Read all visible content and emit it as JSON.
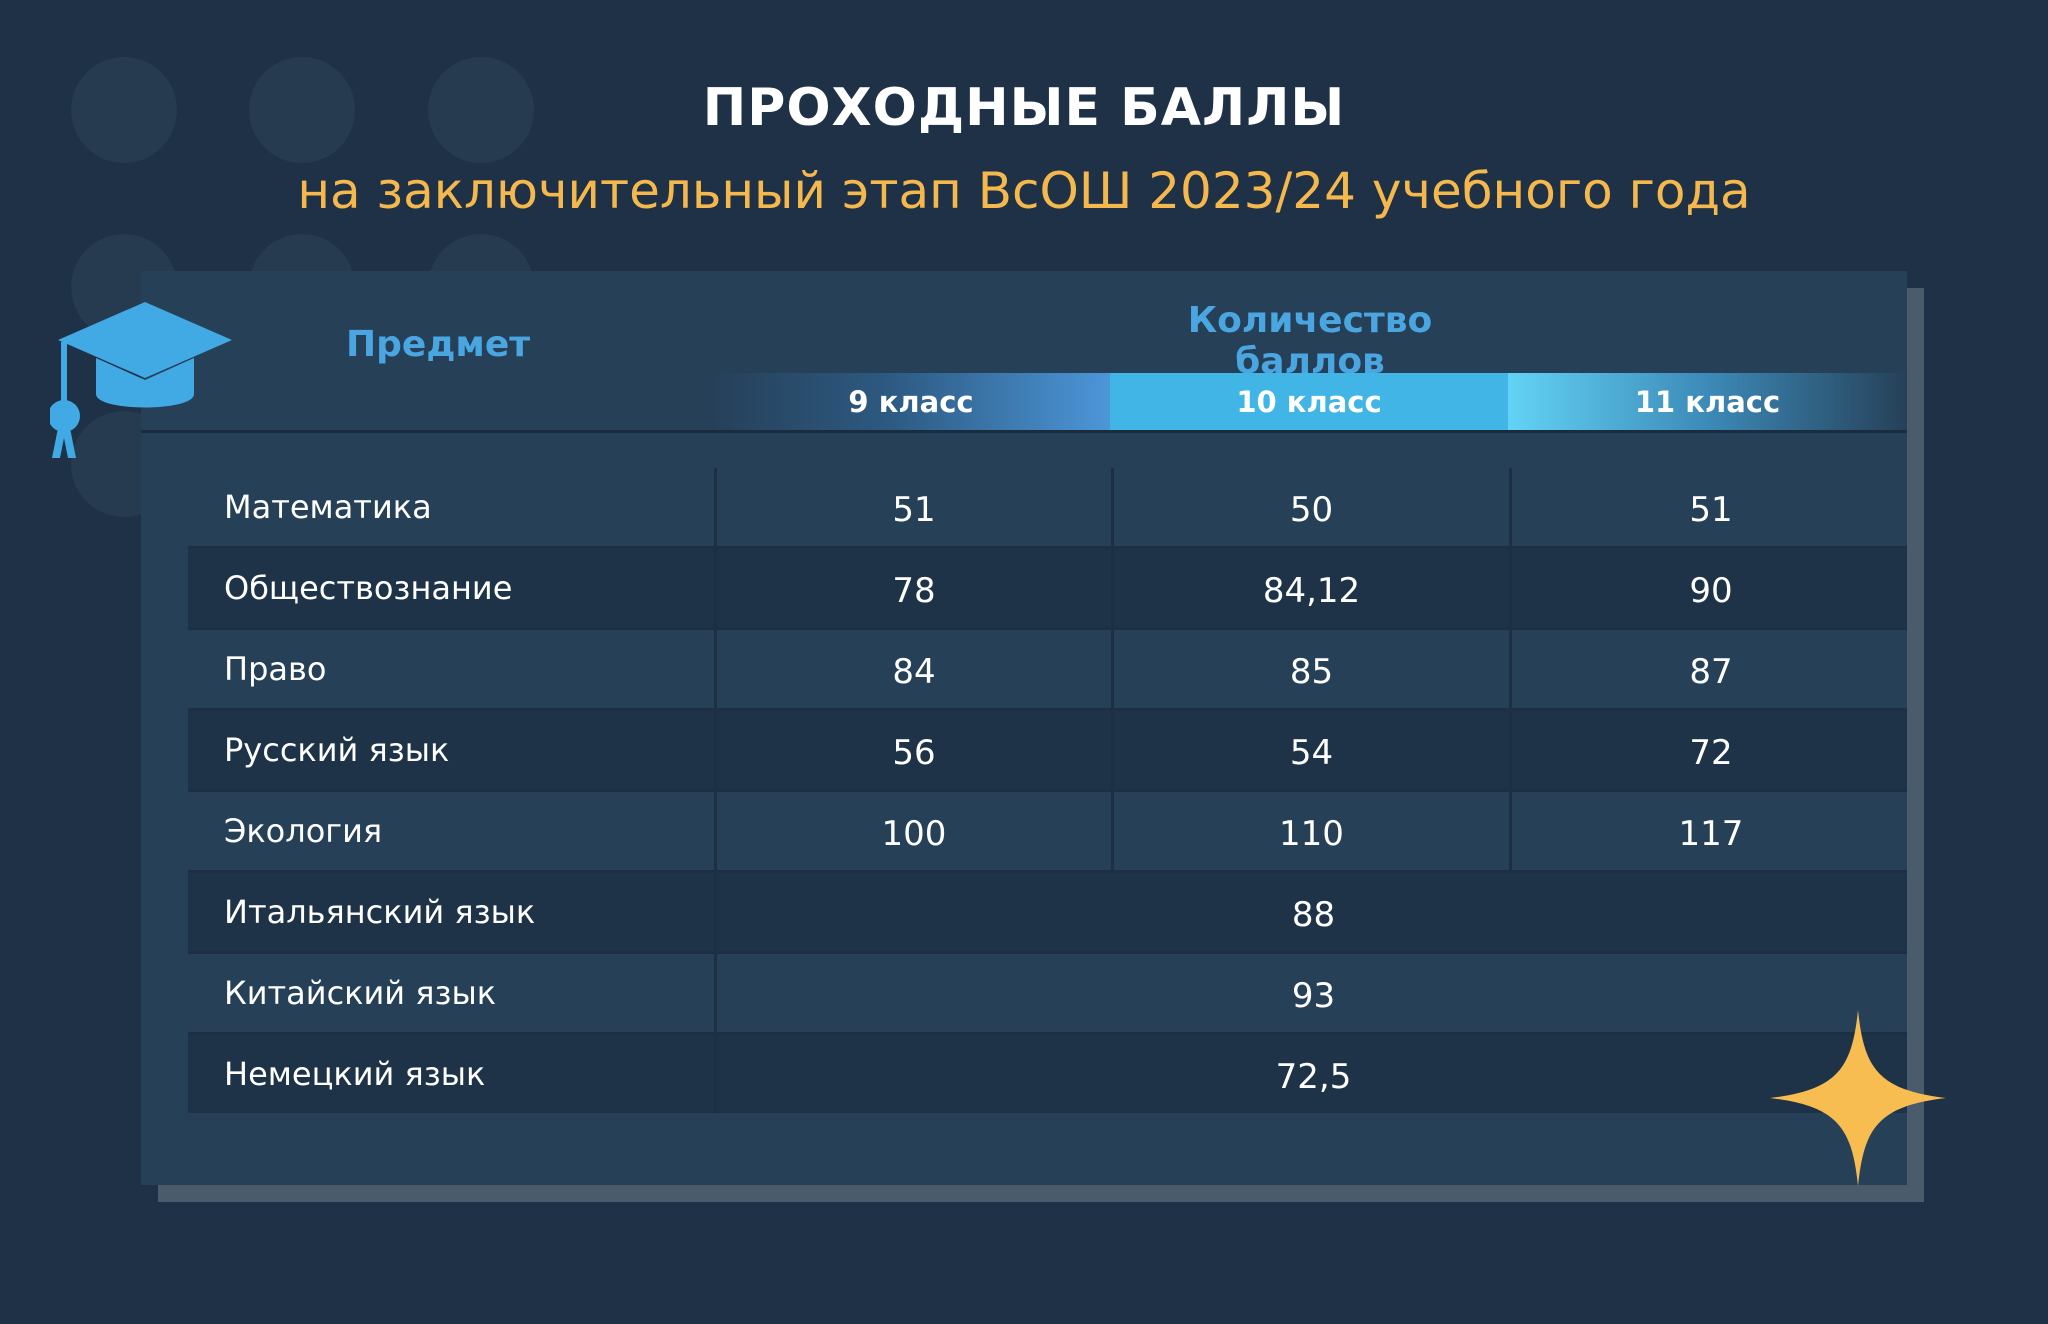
{
  "title": "ПРОХОДНЫЕ БАЛЛЫ",
  "subtitle": "на заключительный этап ВсОШ 2023/24 учебного года",
  "colors": {
    "background": "#1e3146",
    "card": "#264058",
    "accent_blue": "#4aa6e0",
    "accent_yellow": "#f5b84d"
  },
  "icons": [
    "graduation-cap-icon",
    "sparkle-icon"
  ],
  "table": {
    "subject_header": "Предмет",
    "scores_header": "Количество баллов",
    "grades": [
      "9 класс",
      "10 класс",
      "11 класс"
    ],
    "rows": [
      {
        "subject": "Математика",
        "g9": "51",
        "g10": "50",
        "g11": "51"
      },
      {
        "subject": "Обществознание",
        "g9": "78",
        "g10": "84,12",
        "g11": "90"
      },
      {
        "subject": "Право",
        "g9": "84",
        "g10": "85",
        "g11": "87"
      },
      {
        "subject": "Русский язык",
        "g9": "56",
        "g10": "54",
        "g11": "72"
      },
      {
        "subject": "Экология",
        "g9": "100",
        "g10": "110",
        "g11": "117"
      },
      {
        "subject": "Итальянский язык",
        "all": "88"
      },
      {
        "subject": "Китайский язык",
        "all": "93"
      },
      {
        "subject": "Немецкий язык",
        "all": "72,5"
      }
    ]
  }
}
